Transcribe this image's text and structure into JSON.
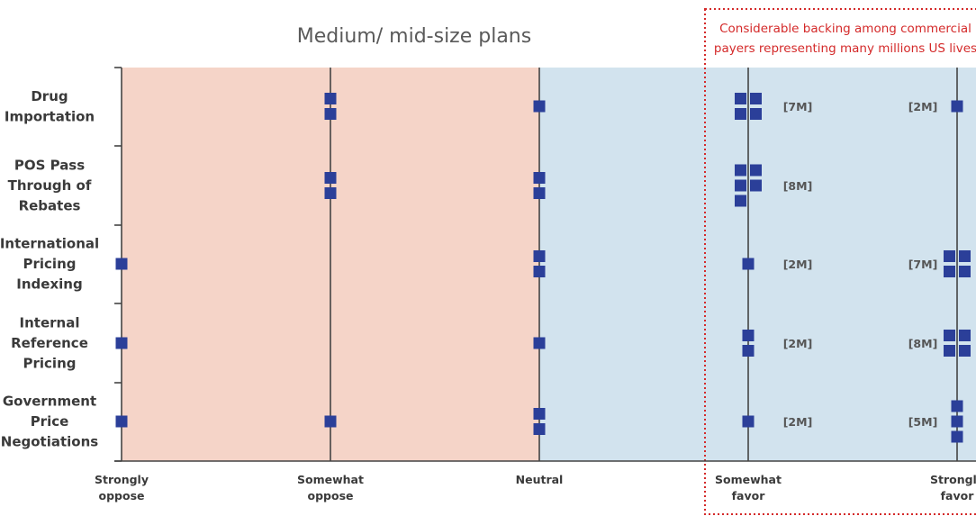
{
  "chart_data": {
    "type": "scatter",
    "title": "Medium/ mid-size plans",
    "callout": {
      "line1": "Considerable backing among commercial",
      "line2": "payers representing many millions US lives"
    },
    "x_categories": [
      {
        "lines": [
          "Strongly",
          "oppose"
        ]
      },
      {
        "lines": [
          "Somewhat",
          "oppose"
        ]
      },
      {
        "lines": [
          "Neutral"
        ]
      },
      {
        "lines": [
          "Somewhat",
          "favor"
        ]
      },
      {
        "lines": [
          "Strongly",
          "favor"
        ]
      }
    ],
    "rows": [
      {
        "lines": [
          "Drug",
          "Importation"
        ],
        "counts": [
          0,
          2,
          1,
          4,
          1
        ],
        "lives": {
          "Somewhat favor": "[7M]",
          "Strongly favor": "[2M]"
        }
      },
      {
        "lines": [
          "POS Pass",
          "Through of",
          "Rebates"
        ],
        "counts": [
          0,
          2,
          2,
          5,
          0
        ],
        "lives": {
          "Somewhat favor": "[8M]"
        }
      },
      {
        "lines": [
          "International",
          "Pricing",
          "Indexing"
        ],
        "counts": [
          1,
          0,
          2,
          1,
          4
        ],
        "lives": {
          "Somewhat favor": "[2M]",
          "Strongly favor": "[7M]"
        }
      },
      {
        "lines": [
          "Internal",
          "Reference",
          "Pricing"
        ],
        "counts": [
          1,
          0,
          1,
          2,
          4
        ],
        "lives": {
          "Somewhat favor": "[2M]",
          "Strongly favor": "[8M]"
        }
      },
      {
        "lines": [
          "Government",
          "Price",
          "Negotiations"
        ],
        "counts": [
          1,
          1,
          2,
          1,
          3
        ],
        "lives": {
          "Somewhat favor": "[2M]",
          "Strongly favor": "[5M]"
        }
      }
    ],
    "colors": {
      "oppose_region": "#f5d4c8",
      "favor_region": "#d2e3ee",
      "marker": "#2b3f99",
      "callout_border": "#d42a2a",
      "axis": "#444444"
    }
  }
}
